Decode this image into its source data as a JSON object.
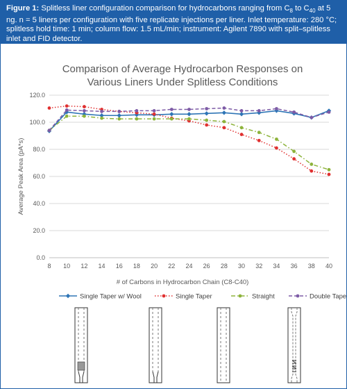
{
  "caption": {
    "label": "Figure 1:",
    "text_1": " Splitless liner configuration comparison for hydrocarbons ranging from C",
    "sub_a": "8",
    "text_2": " to C",
    "sub_b": "40",
    "text_3": " at 5 ng. n = 5 liners per configuration with five replicate injections per liner. Inlet temperature: 280 °C; splitless hold time: 1 min; column flow: 1.5 mL/min; instrument: Agilent 7890 with split–splitless inlet and FID detector."
  },
  "chart_data": {
    "type": "line",
    "title_line1": "Comparison of Average Hydrocarbon Responses on",
    "title_line2": "Various Liners Under Splitless Conditions",
    "xlabel": "# of Carbons in Hydrocarbon Chain (C8-C40)",
    "ylabel": "Average Peak Area (pA*s)",
    "x": [
      8,
      10,
      12,
      14,
      16,
      18,
      20,
      22,
      24,
      26,
      28,
      30,
      32,
      34,
      36,
      38,
      40
    ],
    "ylim": [
      0,
      120
    ],
    "yticks": [
      "0.0",
      "20.0",
      "40.0",
      "60.0",
      "80.0",
      "100.0",
      "120.0"
    ],
    "grid": true,
    "legend_position": "bottom",
    "series": [
      {
        "name": "Single Taper w/ Wool",
        "color": "#2e75b6",
        "dash": "solid",
        "marker": "diamond",
        "values": [
          93.5,
          107.5,
          106.0,
          105.0,
          105.0,
          105.5,
          105.5,
          106.0,
          106.0,
          106.5,
          107.0,
          106.0,
          107.0,
          108.5,
          106.5,
          103.5,
          108.5
        ]
      },
      {
        "name": "Single Taper",
        "color": "#e03030",
        "dash": "dot",
        "marker": "circle",
        "values": [
          110.5,
          112.0,
          111.5,
          109.5,
          108.0,
          107.0,
          106.0,
          103.0,
          101.0,
          98.0,
          96.0,
          91.0,
          86.5,
          81.0,
          73.0,
          64.0,
          61.5
        ]
      },
      {
        "name": "Straight",
        "color": "#8db33b",
        "dash": "dashdot",
        "marker": "circle",
        "values": [
          94.0,
          104.5,
          104.5,
          103.0,
          102.5,
          102.5,
          102.5,
          102.5,
          102.5,
          101.5,
          100.5,
          96.0,
          92.5,
          87.5,
          78.5,
          69.0,
          65.0
        ]
      },
      {
        "name": "Double Taper Cyclo",
        "color": "#7d5ba6",
        "dash": "dash",
        "marker": "circle",
        "values": [
          94.0,
          109.0,
          108.5,
          108.0,
          108.0,
          108.5,
          108.5,
          109.5,
          109.5,
          110.0,
          110.5,
          108.5,
          108.5,
          110.0,
          107.5,
          103.5,
          107.5
        ]
      }
    ]
  },
  "liners": [
    {
      "name": "single-taper-wool-liner"
    },
    {
      "name": "single-taper-liner"
    },
    {
      "name": "straight-liner"
    },
    {
      "name": "double-taper-cyclo-liner"
    }
  ]
}
